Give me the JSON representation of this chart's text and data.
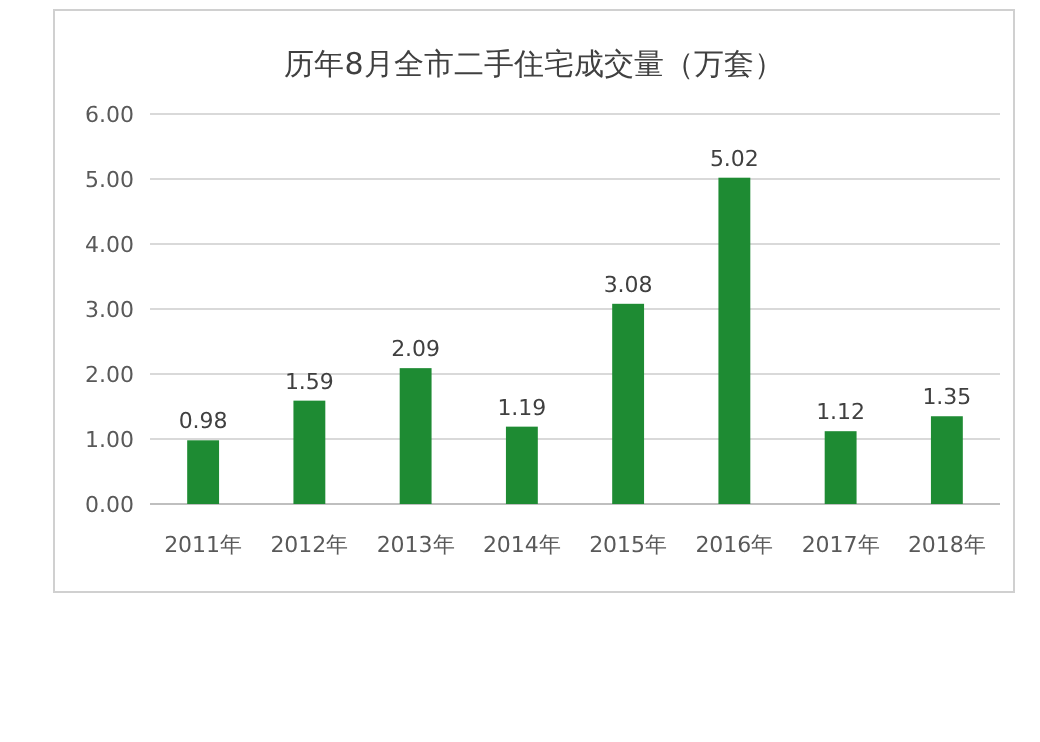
{
  "chart_data": {
    "type": "bar",
    "title": "历年8月全市二手住宅成交量（万套）",
    "categories": [
      "2011年",
      "2012年",
      "2013年",
      "2014年",
      "2015年",
      "2016年",
      "2017年",
      "2018年"
    ],
    "values": [
      0.98,
      1.59,
      2.09,
      1.19,
      3.08,
      5.02,
      1.12,
      1.35
    ],
    "color": "#1e8b33",
    "ylim": [
      0,
      6
    ],
    "yticks": [
      {
        "value": 0,
        "label": "0.00"
      },
      {
        "value": 1,
        "label": "1.00"
      },
      {
        "value": 2,
        "label": "2.00"
      },
      {
        "value": 3,
        "label": "3.00"
      },
      {
        "value": 4,
        "label": "4.00"
      },
      {
        "value": 5,
        "label": "5.00"
      },
      {
        "value": 6,
        "label": "6.00"
      }
    ],
    "grid": "y",
    "data_labels": true
  }
}
